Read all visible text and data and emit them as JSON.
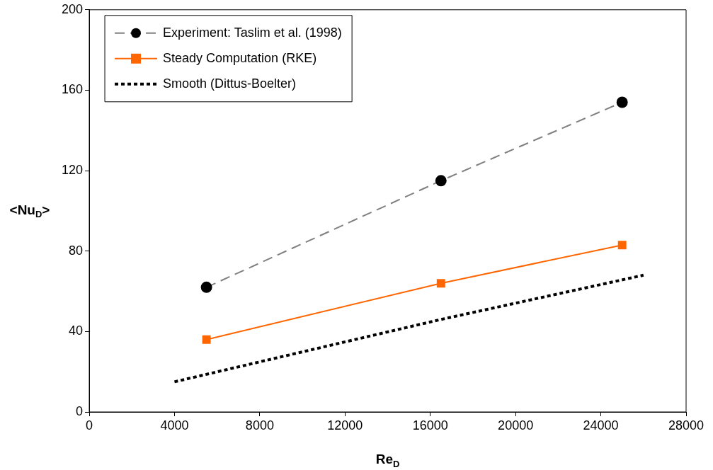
{
  "chart_data": {
    "type": "line",
    "xlabel": "Re$_{D}$",
    "ylabel": "<Nu$_{D}$>",
    "xlim": [
      0,
      28000
    ],
    "xticks": [
      0,
      4000,
      8000,
      12000,
      16000,
      20000,
      24000,
      28000
    ],
    "ylim": [
      0,
      200
    ],
    "yticks": [
      0,
      40,
      80,
      120,
      160,
      200
    ],
    "grid": false,
    "legend": "top left",
    "series": [
      {
        "name": "Experiment: Taslim et al. (1998)",
        "color": "#808080",
        "colors": [
          "#000000",
          "#000000",
          "#000000"
        ],
        "marker": "circle",
        "line_style": "dashed",
        "x": [
          5500,
          16500,
          25000
        ],
        "values": [
          62,
          115,
          154
        ]
      },
      {
        "name": "Steady Computation (RKE)",
        "color": "#ff6600",
        "marker": "square",
        "line_style": "solid",
        "x": [
          5500,
          16500,
          25000
        ],
        "values": [
          36,
          64,
          83
        ]
      },
      {
        "name": "Smooth (Dittus-Boelter)",
        "color": "#000000",
        "marker": "none",
        "line_style": "dotted",
        "x": [
          4000,
          16500,
          26000
        ],
        "values": [
          15,
          46,
          68
        ]
      }
    ]
  }
}
